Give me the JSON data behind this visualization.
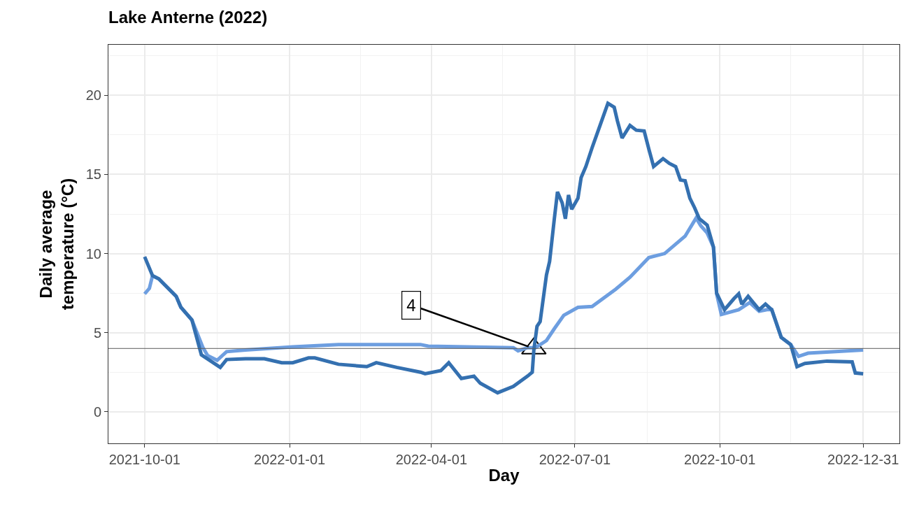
{
  "chart_data": {
    "type": "line",
    "title": "Lake Anterne (2022)",
    "xlabel": "Day",
    "ylabel": "Daily average\ntemperature (°C)",
    "xlim": [
      "2021-09-08",
      "2023-01-23"
    ],
    "xticks": [
      "2021-10-01",
      "2022-01-01",
      "2022-04-01",
      "2022-07-01",
      "2022-10-01",
      "2022-12-31"
    ],
    "ylim": [
      -2,
      23.2
    ],
    "yticks": [
      0,
      5,
      10,
      15,
      20
    ],
    "grid": true,
    "legend": false,
    "line_style": "solid",
    "marker": "none",
    "series": [
      {
        "color": "#6d9ee0",
        "x": [
          "2021-10-01",
          "2021-10-04",
          "2021-10-06",
          "2021-10-10",
          "2021-10-21",
          "2021-10-24",
          "2021-10-31",
          "2021-11-07",
          "2021-11-10",
          "2021-11-16",
          "2021-11-22",
          "2021-12-04",
          "2022-01-03",
          "2022-02-01",
          "2022-03-25",
          "2022-03-30",
          "2022-05-23",
          "2022-05-26",
          "2022-06-01",
          "2022-06-06",
          "2022-06-13",
          "2022-06-18",
          "2022-06-24",
          "2022-07-03",
          "2022-07-12",
          "2022-07-27",
          "2022-08-05",
          "2022-08-17",
          "2022-08-27",
          "2022-09-09",
          "2022-09-16",
          "2022-09-19",
          "2022-09-23",
          "2022-09-27",
          "2022-09-29",
          "2022-10-02",
          "2022-10-13",
          "2022-10-20",
          "2022-10-26",
          "2022-10-31",
          "2022-11-03",
          "2022-11-09",
          "2022-11-15",
          "2022-11-20",
          "2022-11-26",
          "2022-12-31"
        ],
        "values": [
          7.45,
          7.8,
          8.6,
          8.4,
          7.3,
          6.6,
          5.8,
          4.05,
          3.55,
          3.25,
          3.8,
          3.9,
          4.1,
          4.25,
          4.25,
          4.15,
          4.05,
          3.85,
          4.05,
          4.05,
          4.5,
          5.25,
          6.1,
          6.6,
          6.65,
          7.75,
          8.5,
          9.75,
          10.0,
          11.1,
          12.25,
          11.75,
          11.3,
          10.4,
          7.45,
          6.15,
          6.45,
          6.9,
          6.35,
          6.45,
          6.45,
          4.7,
          4.25,
          3.5,
          3.7,
          3.9
        ]
      },
      {
        "color": "#3470b0",
        "x": [
          "2021-10-01",
          "2021-10-06",
          "2021-10-10",
          "2021-10-21",
          "2021-10-24",
          "2021-10-31",
          "2021-11-06",
          "2021-11-12",
          "2021-11-18",
          "2021-11-22",
          "2021-12-04",
          "2021-12-16",
          "2021-12-27",
          "2022-01-03",
          "2022-01-13",
          "2022-01-17",
          "2022-02-01",
          "2022-02-19",
          "2022-02-25",
          "2022-03-10",
          "2022-03-25",
          "2022-03-28",
          "2022-04-07",
          "2022-04-12",
          "2022-04-20",
          "2022-04-28",
          "2022-05-02",
          "2022-05-13",
          "2022-05-23",
          "2022-06-01",
          "2022-06-04",
          "2022-06-05",
          "2022-06-07",
          "2022-06-09",
          "2022-06-13",
          "2022-06-15",
          "2022-06-18",
          "2022-06-20",
          "2022-06-23",
          "2022-06-25",
          "2022-06-27",
          "2022-06-29",
          "2022-07-03",
          "2022-07-05",
          "2022-07-08",
          "2022-07-12",
          "2022-07-17",
          "2022-07-22",
          "2022-07-26",
          "2022-07-28",
          "2022-07-31",
          "2022-08-05",
          "2022-08-09",
          "2022-08-14",
          "2022-08-17",
          "2022-08-20",
          "2022-08-26",
          "2022-08-30",
          "2022-09-03",
          "2022-09-06",
          "2022-09-09",
          "2022-09-12",
          "2022-09-15",
          "2022-09-18",
          "2022-09-23",
          "2022-09-27",
          "2022-09-29",
          "2022-10-04",
          "2022-10-10",
          "2022-10-13",
          "2022-10-15",
          "2022-10-19",
          "2022-10-26",
          "2022-10-30",
          "2022-11-03",
          "2022-11-09",
          "2022-11-15",
          "2022-11-19",
          "2022-11-24",
          "2022-12-08",
          "2022-12-24",
          "2022-12-26",
          "2022-12-31"
        ],
        "values": [
          9.8,
          8.6,
          8.4,
          7.3,
          6.6,
          5.8,
          3.6,
          3.2,
          2.8,
          3.3,
          3.35,
          3.35,
          3.1,
          3.1,
          3.4,
          3.4,
          3.0,
          2.85,
          3.1,
          2.8,
          2.5,
          2.4,
          2.6,
          3.1,
          2.1,
          2.25,
          1.8,
          1.2,
          1.6,
          2.25,
          2.5,
          3.9,
          5.4,
          5.7,
          8.65,
          9.5,
          12.2,
          13.9,
          13.2,
          12.2,
          13.7,
          12.8,
          13.5,
          14.8,
          15.5,
          16.7,
          18.1,
          19.5,
          19.25,
          18.4,
          17.3,
          18.1,
          17.8,
          17.75,
          16.6,
          15.5,
          16.0,
          15.7,
          15.5,
          14.65,
          14.6,
          13.5,
          12.9,
          12.2,
          11.8,
          10.4,
          7.5,
          6.45,
          7.15,
          7.45,
          6.8,
          7.3,
          6.45,
          6.8,
          6.45,
          4.7,
          4.25,
          2.85,
          3.05,
          3.2,
          3.15,
          2.45,
          2.4
        ]
      },
      {
        "type": "scatter",
        "marker": "triangle",
        "color": "#ffffff",
        "x": [
          "2022-06-05"
        ],
        "values": [
          4
        ]
      }
    ],
    "ref_lines": [
      {
        "axis": "y",
        "value": 4,
        "color": "#5a5a5a"
      }
    ],
    "annotations": [
      {
        "text": "4",
        "x": "2022-06-05",
        "y": 4
      }
    ]
  }
}
